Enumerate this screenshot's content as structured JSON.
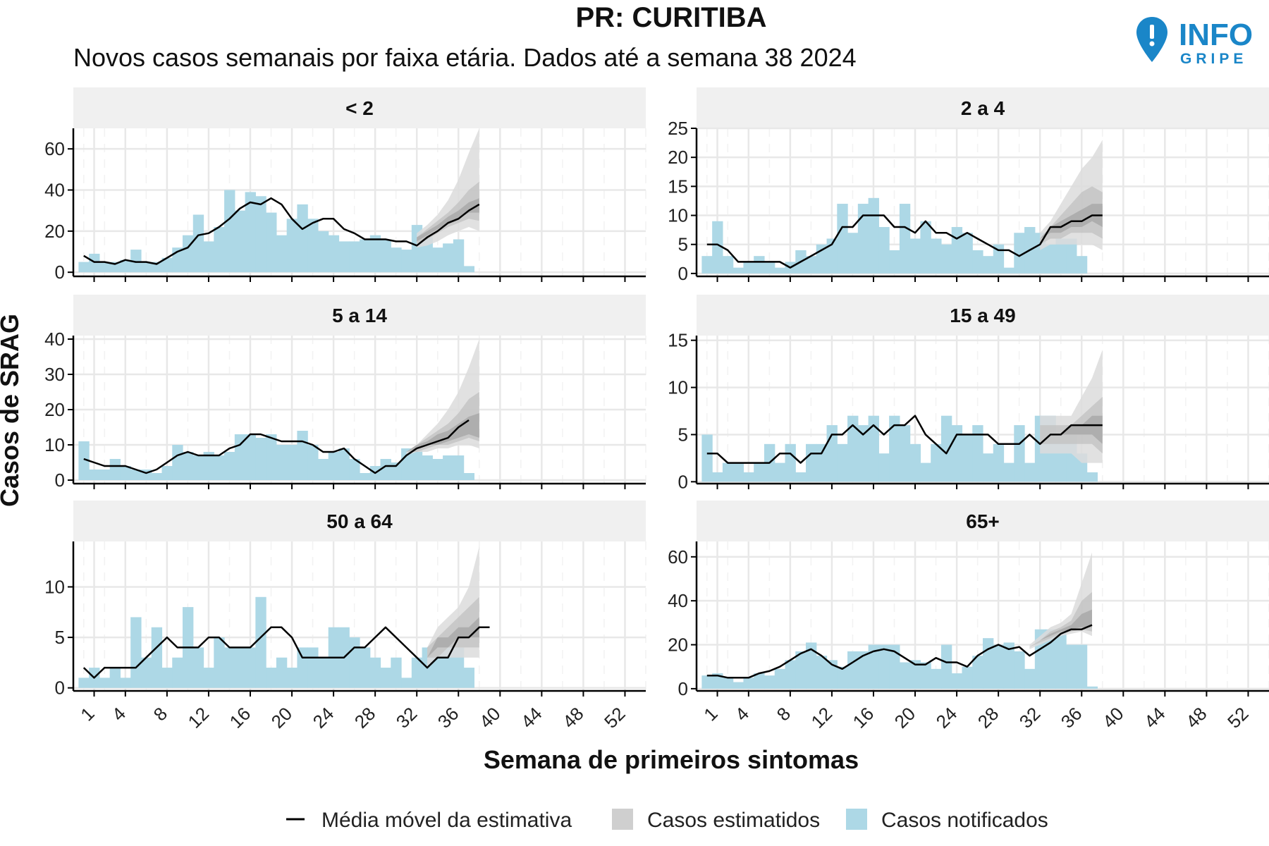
{
  "chart_data": {
    "type": "bar",
    "title": "PR: CURITIBA",
    "subtitle": "Novos casos semanais por faixa etária. Dados até a semana 38 2024",
    "xlabel": "Semana de primeiros sintomas",
    "ylabel": "Casos de SRAG",
    "x_ticks": [
      1,
      4,
      8,
      12,
      16,
      20,
      24,
      28,
      32,
      36,
      40,
      44,
      48,
      52
    ],
    "xlim": [
      -1,
      54
    ],
    "grid": true,
    "legend_position": "bottom",
    "legend": [
      {
        "key": "line",
        "label": "Média móvel da estimativa"
      },
      {
        "key": "band",
        "label": "Casos estimatidos"
      },
      {
        "key": "bar",
        "label": "Casos notificados"
      }
    ],
    "colors": {
      "bar": "#add8e6",
      "line": "#000000",
      "band_outer": "#dcdcdc",
      "band_middle": "#c4c4c4",
      "band_inner": "#a9a9a9",
      "strip": "#f0f0f0",
      "grid_major": "#e8e8e8",
      "grid_minor": "#f2f2f2",
      "logo": "#1a86c8"
    },
    "logo": {
      "main": "INFO",
      "sub": "GRIPE"
    },
    "panels": [
      {
        "label": "< 2",
        "ylim": [
          -2,
          70
        ],
        "yticks": [
          0,
          20,
          40,
          60
        ],
        "bars": [
          5,
          9,
          5,
          5,
          6,
          11,
          5,
          5,
          7,
          12,
          18,
          28,
          15,
          22,
          40,
          30,
          39,
          37,
          29,
          18,
          26,
          33,
          26,
          20,
          18,
          15,
          15,
          16,
          18,
          16,
          12,
          11,
          23,
          17,
          12,
          14,
          16,
          3
        ],
        "line": [
          8,
          5,
          5,
          4,
          6,
          5,
          5,
          4,
          7,
          10,
          12,
          18,
          19,
          22,
          26,
          31,
          34,
          33,
          36,
          33,
          26,
          21,
          24,
          26,
          26,
          21,
          19,
          16,
          16,
          16,
          15,
          15,
          13,
          17,
          20,
          24,
          26,
          30,
          33
        ],
        "band": {
          "start": 32,
          "outer_lo": [
            12,
            13,
            15,
            18,
            20,
            22,
            20
          ],
          "outer_hi": [
            19,
            23,
            28,
            35,
            45,
            58,
            70
          ],
          "mid_lo": [
            14,
            16,
            19,
            22,
            24,
            26,
            25
          ],
          "mid_hi": [
            17,
            21,
            25,
            29,
            34,
            40,
            44
          ],
          "inner_lo": [
            15,
            18,
            21,
            24,
            26,
            29,
            29
          ],
          "inner_hi": [
            17,
            20,
            23,
            27,
            30,
            34,
            36
          ]
        }
      },
      {
        "label": "2 a 4",
        "ylim": [
          -0.5,
          25
        ],
        "yticks": [
          0,
          5,
          10,
          15,
          20,
          25
        ],
        "bars": [
          3,
          9,
          3,
          1,
          2,
          3,
          2,
          1,
          2,
          4,
          3,
          5,
          6,
          12,
          7,
          12,
          13,
          8,
          4,
          12,
          6,
          9,
          6,
          5,
          8,
          7,
          4,
          3,
          5,
          1,
          7,
          8,
          7,
          5,
          6,
          6,
          3,
          0
        ],
        "line": [
          5,
          5,
          4,
          2,
          2,
          2,
          2,
          2,
          1,
          2,
          3,
          4,
          5,
          8,
          8,
          10,
          10,
          10,
          8,
          8,
          7,
          9,
          7,
          7,
          6,
          7,
          6,
          5,
          4,
          4,
          3,
          4,
          5,
          8,
          8,
          9,
          9,
          10,
          10
        ],
        "band": {
          "start": 32,
          "outer_lo": [
            4,
            5,
            5,
            5,
            5,
            5,
            4
          ],
          "outer_hi": [
            7,
            9,
            12,
            15,
            18,
            20,
            23
          ],
          "mid_lo": [
            5,
            6,
            6,
            7,
            7,
            7,
            6
          ],
          "mid_hi": [
            6,
            8,
            10,
            12,
            14,
            15,
            14
          ],
          "inner_lo": [
            6,
            7,
            7,
            8,
            8,
            9,
            8
          ],
          "inner_hi": [
            6,
            8,
            9,
            10,
            11,
            12,
            12
          ]
        }
      },
      {
        "label": "5 a 14",
        "ylim": [
          -1,
          41
        ],
        "yticks": [
          0,
          10,
          20,
          30,
          40
        ],
        "bars": [
          11,
          3,
          3,
          6,
          4,
          3,
          3,
          2,
          4,
          10,
          8,
          7,
          8,
          7,
          8,
          13,
          13,
          12,
          13,
          10,
          10,
          14,
          10,
          6,
          8,
          9,
          6,
          2,
          4,
          6,
          5,
          9,
          9,
          7,
          6,
          7,
          7,
          2
        ],
        "line": [
          6,
          5,
          4,
          4,
          4,
          3,
          2,
          3,
          5,
          7,
          8,
          7,
          7,
          7,
          9,
          10,
          13,
          13,
          12,
          11,
          11,
          11,
          10,
          8,
          8,
          9,
          6,
          4,
          2,
          4,
          4,
          7,
          9,
          10,
          11,
          12,
          15,
          17
        ],
        "band": {
          "start": 31,
          "outer_lo": [
            7,
            8,
            8,
            9,
            9,
            10,
            10,
            9
          ],
          "outer_hi": [
            8,
            10,
            13,
            16,
            20,
            25,
            32,
            40
          ],
          "mid_lo": [
            8,
            8,
            9,
            10,
            10,
            11,
            12,
            11
          ],
          "mid_hi": [
            8,
            10,
            12,
            14,
            16,
            19,
            23,
            25
          ],
          "inner_lo": [
            8,
            9,
            10,
            10,
            11,
            12,
            13,
            12
          ],
          "inner_hi": [
            8,
            10,
            11,
            13,
            14,
            16,
            18,
            19
          ]
        }
      },
      {
        "label": "15 a 49",
        "ylim": [
          -0.2,
          15.5
        ],
        "yticks": [
          0,
          5,
          10,
          15
        ],
        "bars": [
          5,
          1,
          2,
          2,
          1,
          2,
          4,
          2,
          4,
          1,
          4,
          4,
          6,
          4,
          7,
          6,
          7,
          3,
          7,
          6,
          4,
          2,
          4,
          7,
          6,
          5,
          6,
          3,
          4,
          2,
          6,
          2,
          7,
          7,
          5,
          6,
          3,
          1
        ],
        "line": [
          3,
          3,
          2,
          2,
          2,
          2,
          2,
          3,
          3,
          2,
          3,
          3,
          5,
          5,
          6,
          5,
          6,
          5,
          6,
          6,
          7,
          5,
          4,
          3,
          5,
          5,
          5,
          5,
          4,
          4,
          4,
          5,
          4,
          5,
          5,
          6,
          6,
          6,
          6
        ],
        "band": {
          "start": 32,
          "outer_lo": [
            3,
            3,
            3,
            3,
            2,
            2,
            2
          ],
          "outer_hi": [
            7,
            7,
            7,
            7,
            9,
            11,
            14
          ],
          "mid_lo": [
            4,
            4,
            4,
            4,
            4,
            4,
            3
          ],
          "mid_hi": [
            6,
            6,
            6,
            6,
            7,
            8,
            9
          ],
          "inner_lo": [
            5,
            5,
            5,
            5,
            5,
            5,
            4
          ],
          "inner_hi": [
            5,
            5,
            5,
            6,
            6,
            7,
            7
          ]
        }
      },
      {
        "label": "50 a 64",
        "ylim": [
          -0.3,
          14.5
        ],
        "yticks": [
          0,
          5,
          10
        ],
        "bars": [
          1,
          2,
          1,
          2,
          1,
          7,
          3,
          6,
          2,
          3,
          8,
          4,
          2,
          5,
          4,
          4,
          4,
          9,
          2,
          3,
          2,
          4,
          4,
          3,
          6,
          6,
          5,
          4,
          3,
          2,
          3,
          1,
          3,
          4,
          4,
          5,
          4,
          2
        ],
        "line": [
          2,
          1,
          2,
          2,
          2,
          2,
          3,
          4,
          5,
          4,
          4,
          4,
          5,
          5,
          4,
          4,
          4,
          5,
          6,
          6,
          5,
          3,
          3,
          3,
          3,
          3,
          4,
          4,
          5,
          6,
          5,
          4,
          3,
          2,
          3,
          3,
          5,
          5,
          6,
          6
        ],
        "band": {
          "start": 33,
          "outer_lo": [
            2,
            3,
            3,
            3,
            3,
            3
          ],
          "outer_hi": [
            4,
            6,
            7,
            8,
            10,
            14
          ],
          "mid_lo": [
            3,
            3,
            4,
            4,
            4,
            4
          ],
          "mid_hi": [
            4,
            5,
            6,
            7,
            8,
            9
          ],
          "inner_lo": [
            3,
            4,
            4,
            5,
            5,
            5
          ],
          "inner_hi": [
            3,
            5,
            5,
            6,
            6,
            7
          ]
        }
      },
      {
        "label": "65+",
        "ylim": [
          -1,
          67
        ],
        "yticks": [
          0,
          20,
          40,
          60
        ],
        "bars": [
          6,
          7,
          5,
          3,
          5,
          7,
          6,
          9,
          13,
          17,
          21,
          15,
          13,
          10,
          17,
          17,
          20,
          20,
          20,
          12,
          13,
          12,
          9,
          20,
          7,
          10,
          15,
          23,
          20,
          21,
          17,
          9,
          27,
          27,
          27,
          20,
          20,
          1
        ],
        "line": [
          6,
          6,
          5,
          5,
          5,
          7,
          8,
          10,
          13,
          16,
          18,
          15,
          11,
          9,
          12,
          15,
          17,
          18,
          17,
          14,
          11,
          11,
          14,
          12,
          12,
          10,
          15,
          18,
          20,
          18,
          19,
          15,
          18,
          21,
          25,
          27,
          27,
          29
        ],
        "band": {
          "start": 31,
          "outer_lo": [
            18,
            20,
            22,
            24,
            25,
            26,
            24
          ],
          "outer_hi": [
            20,
            24,
            28,
            30,
            34,
            48,
            62
          ],
          "mid_lo": [
            19,
            21,
            23,
            25,
            26,
            27,
            26
          ],
          "mid_hi": [
            19,
            22,
            26,
            28,
            31,
            40,
            44
          ],
          "inner_lo": [
            19,
            22,
            24,
            26,
            27,
            28,
            28
          ],
          "inner_hi": [
            19,
            22,
            25,
            27,
            29,
            34,
            36
          ]
        }
      }
    ]
  }
}
